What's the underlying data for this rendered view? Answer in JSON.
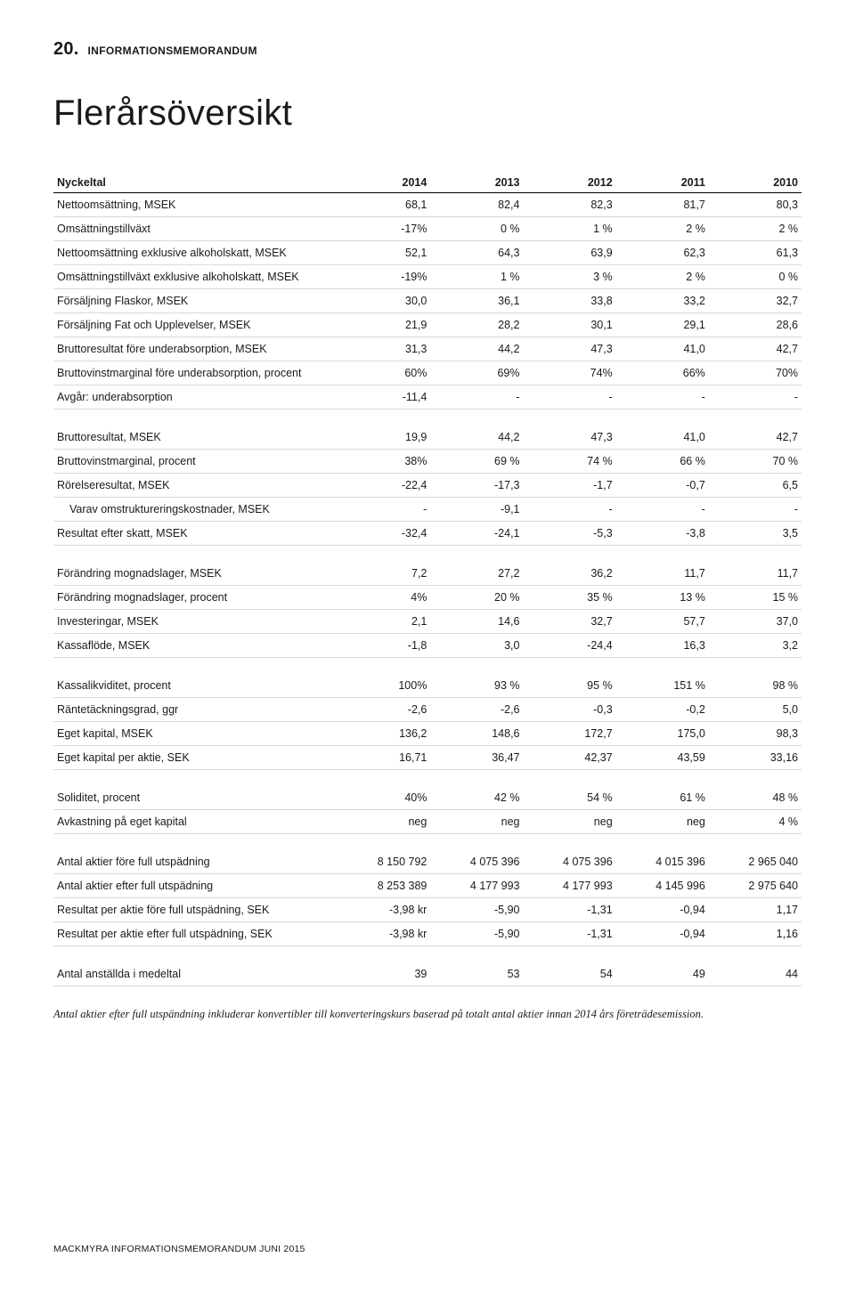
{
  "header": {
    "page_number": "20.",
    "section": "INFORMATIONSMEMORANDUM",
    "title": "Flerårsöversikt"
  },
  "table": {
    "key_header": "Nyckeltal",
    "years": [
      "2014",
      "2013",
      "2012",
      "2011",
      "2010"
    ],
    "groups": [
      {
        "rows": [
          {
            "label": "Nettoomsättning, MSEK",
            "vals": [
              "68,1",
              "82,4",
              "82,3",
              "81,7",
              "80,3"
            ]
          },
          {
            "label": "Omsättningstillväxt",
            "vals": [
              "-17%",
              "0 %",
              "1 %",
              "2 %",
              "2 %"
            ]
          },
          {
            "label": "Nettoomsättning exklusive alkoholskatt, MSEK",
            "vals": [
              "52,1",
              "64,3",
              "63,9",
              "62,3",
              "61,3"
            ]
          },
          {
            "label": "Omsättningstillväxt exklusive alkoholskatt, MSEK",
            "vals": [
              "-19%",
              "1 %",
              "3 %",
              "2 %",
              "0 %"
            ]
          },
          {
            "label": "Försäljning Flaskor, MSEK",
            "vals": [
              "30,0",
              "36,1",
              "33,8",
              "33,2",
              "32,7"
            ]
          },
          {
            "label": "Försäljning Fat och Upplevelser, MSEK",
            "vals": [
              "21,9",
              "28,2",
              "30,1",
              "29,1",
              "28,6"
            ]
          },
          {
            "label": "Bruttoresultat före underabsorption, MSEK",
            "vals": [
              "31,3",
              "44,2",
              "47,3",
              "41,0",
              "42,7"
            ]
          },
          {
            "label": "Bruttovinstmarginal före underabsorption, procent",
            "vals": [
              "60%",
              "69%",
              "74%",
              "66%",
              "70%"
            ]
          },
          {
            "label": "Avgår: underabsorption",
            "vals": [
              "-11,4",
              "-",
              "-",
              "-",
              "-"
            ]
          }
        ]
      },
      {
        "rows": [
          {
            "label": "Bruttoresultat, MSEK",
            "vals": [
              "19,9",
              "44,2",
              "47,3",
              "41,0",
              "42,7"
            ]
          },
          {
            "label": "Bruttovinstmarginal, procent",
            "vals": [
              "38%",
              "69 %",
              "74 %",
              "66 %",
              "70 %"
            ]
          },
          {
            "label": "Rörelseresultat, MSEK",
            "vals": [
              "-22,4",
              "-17,3",
              "-1,7",
              "-0,7",
              "6,5"
            ]
          },
          {
            "label": "Varav omstruktureringskostnader, MSEK",
            "vals": [
              "-",
              "-9,1",
              "-",
              "-",
              "-"
            ],
            "indent": true
          },
          {
            "label": "Resultat efter skatt, MSEK",
            "vals": [
              "-32,4",
              "-24,1",
              "-5,3",
              "-3,8",
              "3,5"
            ]
          }
        ]
      },
      {
        "rows": [
          {
            "label": "Förändring mognadslager, MSEK",
            "vals": [
              "7,2",
              "27,2",
              "36,2",
              "11,7",
              "11,7"
            ]
          },
          {
            "label": "Förändring mognadslager, procent",
            "vals": [
              "4%",
              "20 %",
              "35 %",
              "13 %",
              "15 %"
            ]
          },
          {
            "label": "Investeringar, MSEK",
            "vals": [
              "2,1",
              "14,6",
              "32,7",
              "57,7",
              "37,0"
            ]
          },
          {
            "label": "Kassaflöde, MSEK",
            "vals": [
              "-1,8",
              "3,0",
              "-24,4",
              "16,3",
              "3,2"
            ]
          }
        ]
      },
      {
        "rows": [
          {
            "label": "Kassalikviditet, procent",
            "vals": [
              "100%",
              "93 %",
              "95 %",
              "151 %",
              "98 %"
            ]
          },
          {
            "label": "Räntetäckningsgrad, ggr",
            "vals": [
              "-2,6",
              "-2,6",
              "-0,3",
              "-0,2",
              "5,0"
            ]
          },
          {
            "label": "Eget kapital, MSEK",
            "vals": [
              "136,2",
              "148,6",
              "172,7",
              "175,0",
              "98,3"
            ]
          },
          {
            "label": "Eget kapital per aktie, SEK",
            "vals": [
              "16,71",
              "36,47",
              "42,37",
              "43,59",
              "33,16"
            ]
          }
        ]
      },
      {
        "rows": [
          {
            "label": "Soliditet, procent",
            "vals": [
              "40%",
              "42 %",
              "54 %",
              "61 %",
              "48 %"
            ]
          },
          {
            "label": "Avkastning på eget kapital",
            "vals": [
              "neg",
              "neg",
              "neg",
              "neg",
              "4 %"
            ]
          }
        ]
      },
      {
        "rows": [
          {
            "label": "Antal aktier före full utspädning",
            "vals": [
              "8 150 792",
              "4 075 396",
              "4 075 396",
              "4 015 396",
              "2 965 040"
            ]
          },
          {
            "label": "Antal aktier efter full utspädning",
            "vals": [
              "8 253 389",
              "4 177 993",
              "4 177 993",
              "4 145 996",
              "2 975 640"
            ]
          },
          {
            "label": "Resultat per aktie före full utspädning, SEK",
            "vals": [
              "-3,98 kr",
              "-5,90",
              "-1,31",
              "-0,94",
              "1,17"
            ]
          },
          {
            "label": "Resultat per aktie efter full utspädning, SEK",
            "vals": [
              "-3,98 kr",
              "-5,90",
              "-1,31",
              "-0,94",
              "1,16"
            ]
          }
        ]
      },
      {
        "rows": [
          {
            "label": "Antal anställda i medeltal",
            "vals": [
              "39",
              "53",
              "54",
              "49",
              "44"
            ]
          }
        ]
      }
    ]
  },
  "footnote": "Antal aktier efter full utspändning inkluderar konvertibler till konverteringskurs baserad på totalt antal aktier innan 2014 års företrädesemission.",
  "footer": "MACKMYRA INFORMATIONSMEMORANDUM JUNI 2015"
}
